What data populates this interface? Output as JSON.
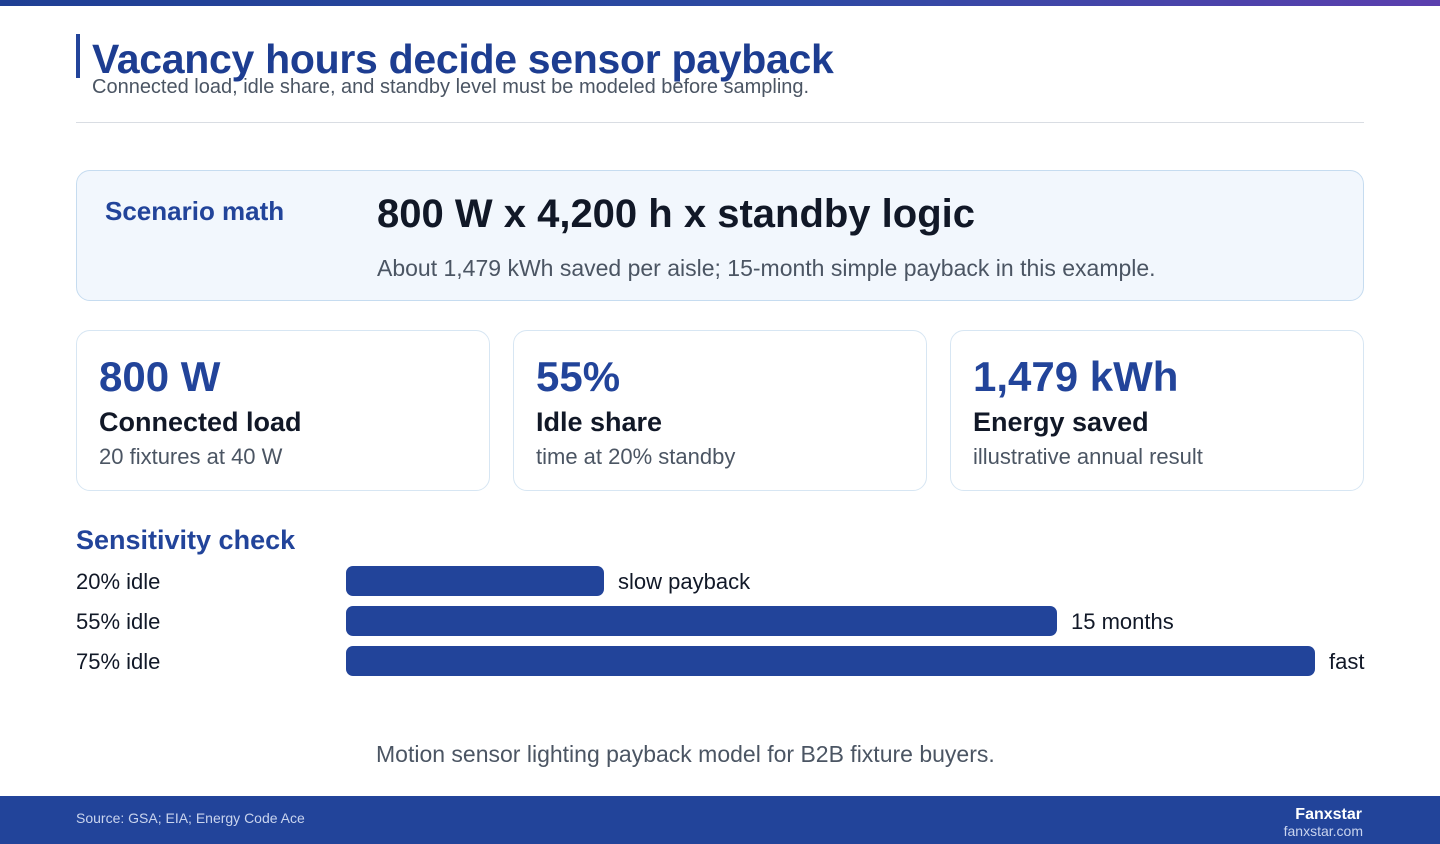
{
  "header": {
    "title": "Vacancy hours decide sensor payback",
    "subtitle": "Connected load, idle share, and standby level must be modeled before sampling."
  },
  "scenario": {
    "label": "Scenario math",
    "formula": "800 W x 4,200 h x standby logic",
    "note": "About 1,479 kWh saved per aisle; 15-month simple payback in this example."
  },
  "metrics": [
    {
      "value": "800 W",
      "label": "Connected load",
      "sub": "20 fixtures at 40 W"
    },
    {
      "value": "55%",
      "label": "Idle share",
      "sub": "time at 20% standby"
    },
    {
      "value": "1,479 kWh",
      "label": "Energy saved",
      "sub": "illustrative annual result"
    }
  ],
  "sensitivity": {
    "title": "Sensitivity check",
    "accent_color": "#22449a",
    "max_idle": 75,
    "rows": [
      {
        "category": "20% idle",
        "idle_pct": 20,
        "value_label": "slow payback"
      },
      {
        "category": "55% idle",
        "idle_pct": 55,
        "value_label": "15 months"
      },
      {
        "category": "75% idle",
        "idle_pct": 75,
        "value_label": "fast"
      }
    ]
  },
  "caption": "Motion sensor lighting payback model for B2B fixture buyers.",
  "footer": {
    "source": "Source: GSA; EIA; Energy Code Ace",
    "brand_name": "Fanxstar",
    "brand_url": "fanxstar.com"
  }
}
